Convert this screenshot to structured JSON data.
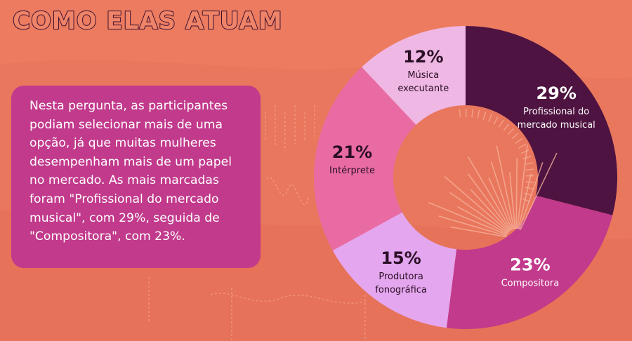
{
  "header": {
    "title": "COMO ELAS ATUAM"
  },
  "description": "Nesta pergunta, as participantes podiam selecionar mais de uma opção, já que muitas mulheres desempenham mais de um papel no mercado. As mais marcadas foram \"Profissional do mercado musical\", com 29%, seguida de \"Compositora\", com 23%.",
  "colors": {
    "background": "#ec7b5f",
    "text_box": "#c23a8c",
    "title_fill": "#ef8468",
    "title_outline": "#3d1030"
  },
  "chart_data": {
    "type": "pie",
    "variant": "donut",
    "unit": "%",
    "slices": [
      {
        "label": "Profissional do mercado musical",
        "label_lines": [
          "Profissional do",
          "mercado musical"
        ],
        "value": 29,
        "value_label": "29%",
        "color": "#4e1340",
        "text_color": "#ffffff"
      },
      {
        "label": "Compositora",
        "label_lines": [
          "Compositora"
        ],
        "value": 23,
        "value_label": "23%",
        "color": "#c23a8c",
        "text_color": "#ffffff"
      },
      {
        "label": "Produtora fonográfica",
        "label_lines": [
          "Produtora",
          "fonográfica"
        ],
        "value": 15,
        "value_label": "15%",
        "color": "#e4a6ee",
        "text_color": "#2b0f26"
      },
      {
        "label": "Intérprete",
        "label_lines": [
          "Intérprete"
        ],
        "value": 21,
        "value_label": "21%",
        "color": "#e96ba3",
        "text_color": "#2b0f26"
      },
      {
        "label": "Música executante",
        "label_lines": [
          "Música",
          "executante"
        ],
        "value": 12,
        "value_label": "12%",
        "color": "#efb7e4",
        "text_color": "#2b0f26"
      }
    ]
  }
}
